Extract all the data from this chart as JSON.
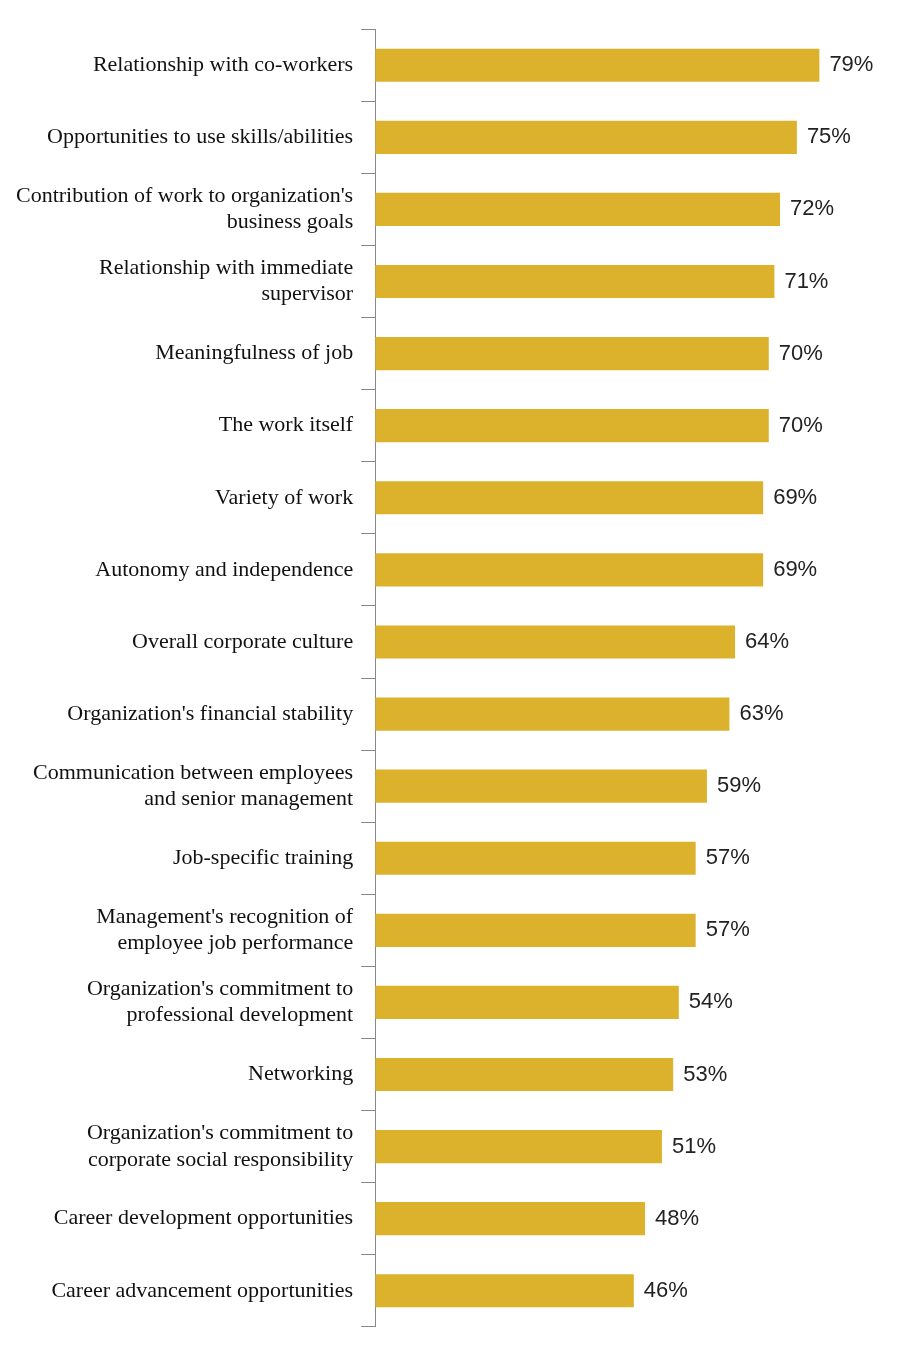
{
  "chart_data": {
    "type": "bar",
    "orientation": "horizontal",
    "categories": [
      "Relationship with co-workers",
      "Opportunities to use skills/abilities",
      "Contribution of work to organization's business goals",
      "Relationship with immediate supervisor",
      "Meaningfulness of job",
      "The work itself",
      "Variety of work",
      "Autonomy and independence",
      "Overall corporate culture",
      "Organization's financial stability",
      "Communication between employees and senior management",
      "Job-specific training",
      "Management's recognition of employee job performance",
      "Organization's commitment to professional development",
      "Networking",
      "Organization's commitment to corporate social responsibility",
      "Career development opportunities",
      "Career advancement opportunities"
    ],
    "values": [
      79,
      75,
      72,
      71,
      70,
      70,
      69,
      69,
      64,
      63,
      59,
      57,
      57,
      54,
      53,
      51,
      48,
      46
    ],
    "value_labels": [
      "79%",
      "75%",
      "72%",
      "71%",
      "70%",
      "70%",
      "69%",
      "69%",
      "64%",
      "63%",
      "59%",
      "57%",
      "57%",
      "54%",
      "53%",
      "51%",
      "48%",
      "46%"
    ],
    "color": "#dcb22c",
    "tick_labels": "y",
    "grid": false,
    "legend": false
  }
}
